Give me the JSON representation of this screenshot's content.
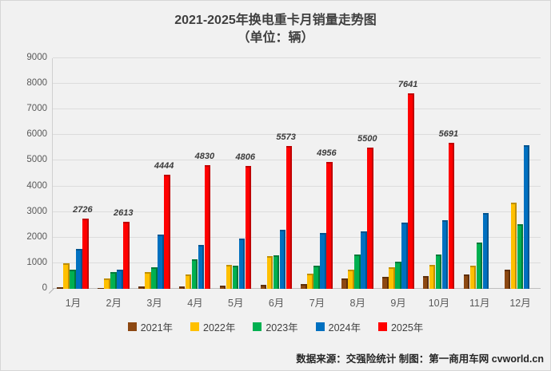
{
  "title": {
    "line1": "2021-2025年换电重卡月销量走势图",
    "line2": "（单位：辆）"
  },
  "footer": "数据来源：交强险统计 制图：第一商用车网 cvworld.cn",
  "chart_data": {
    "type": "bar",
    "title": "2021-2025年换电重卡月销量走势图（单位：辆）",
    "categories": [
      "1月",
      "2月",
      "3月",
      "4月",
      "5月",
      "6月",
      "7月",
      "8月",
      "9月",
      "10月",
      "11月",
      "12月"
    ],
    "series": [
      {
        "name": "2021年",
        "color": "#8C4812",
        "edge": "#5e2f0a",
        "values": [
          60,
          45,
          90,
          100,
          130,
          160,
          180,
          390,
          480,
          510,
          570,
          740
        ]
      },
      {
        "name": "2022年",
        "color": "#FFC000",
        "edge": "#bf8f00",
        "values": [
          1000,
          420,
          650,
          550,
          920,
          1270,
          600,
          760,
          830,
          920,
          890,
          3360
        ]
      },
      {
        "name": "2023年",
        "color": "#00B050",
        "edge": "#00793a",
        "values": [
          760,
          670,
          850,
          1150,
          910,
          1320,
          890,
          1330,
          1050,
          1340,
          1800,
          2530
        ]
      },
      {
        "name": "2024年",
        "color": "#0070C0",
        "edge": "#00548f",
        "values": [
          1550,
          760,
          2130,
          1700,
          1950,
          2310,
          2170,
          2230,
          2600,
          2670,
          2960,
          5600
        ]
      },
      {
        "name": "2025年",
        "color": "#FF0000",
        "edge": "#c00000",
        "values": [
          2726,
          2613,
          4444,
          4830,
          4806,
          5573,
          4956,
          5500,
          7641,
          5691,
          null,
          null
        ],
        "data_labels": true
      }
    ],
    "yticks": [
      "0",
      "1000",
      "2000",
      "3000",
      "4000",
      "5000",
      "6000",
      "7000",
      "8000",
      "9000"
    ],
    "ylim": [
      0,
      9000
    ],
    "ytick_step": 1000,
    "grid": true,
    "legend_position": "bottom",
    "background": "#f1f1f1",
    "gridline_color": "#dcdcdc"
  }
}
